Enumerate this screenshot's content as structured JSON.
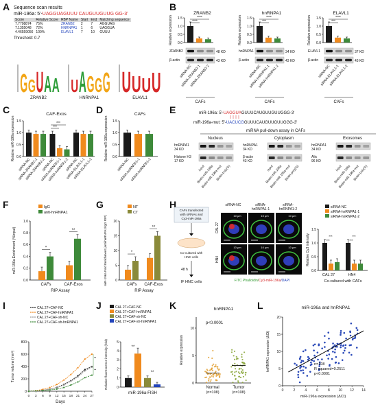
{
  "labels": [
    "A",
    "B",
    "C",
    "D",
    "E",
    "F",
    "G",
    "H",
    "I",
    "J",
    "K",
    "L"
  ],
  "colors": {
    "black": "#1a1a1a",
    "orange": "#f08a1d",
    "green": "#3e8a3a",
    "red": "#d62828",
    "blue": "#2244bb",
    "olive": "#8a8a3a",
    "gray": "#9a9a9a"
  },
  "panelA": {
    "title": "Sequence scan results",
    "seq_prefix": "miR-196a: 5'-",
    "seq_red": "UAGGUAGUUU",
    "seq_mid": " CAUGUUGUUG",
    "seq_suffix": " GG-3'",
    "headers": [
      "Score",
      "Relative Score",
      "RBP Name",
      "Start",
      "End",
      "Matching sequence"
    ],
    "rows": [
      [
        "7.7798874",
        "75%",
        "ZRANB2",
        "2",
        "7",
        "AGGUAG"
      ],
      [
        "7.1355048",
        "72%",
        "HNRNPA1",
        "1",
        "6",
        "UAGGUA"
      ],
      [
        "4.46559056",
        "100%",
        "ELAVL1",
        "7",
        "10",
        "GUUU"
      ]
    ],
    "threshold": "Threshold: 0.7",
    "logos": [
      {
        "name": "ZRANB2",
        "letters": [
          "G",
          "G",
          "U",
          "A",
          "A"
        ]
      },
      {
        "name": "HNRNPA1",
        "letters": [
          "U",
          "A",
          "G",
          "G",
          "G"
        ]
      },
      {
        "name": "ELAVL1",
        "letters": [
          "U",
          "U",
          "U",
          "U"
        ]
      }
    ]
  },
  "panelB": {
    "ylabel": "Relative expression",
    "caption": "CAFs",
    "charts": [
      {
        "protein": "ZRANB2",
        "values": [
          1.0,
          0.25,
          0.2
        ],
        "stars": [
          "****",
          "****"
        ],
        "kda": "48 KD",
        "xt": [
          "siRNA-NC",
          "siRNA-ZRANB2-1",
          "siRNA-ZRANB2-2"
        ]
      },
      {
        "protein": "hnRNPA1",
        "values": [
          1.0,
          0.3,
          0.25
        ],
        "stars": [
          "****",
          "***"
        ],
        "kda": "34 KD",
        "xt": [
          "siRNA-NC",
          "siRNA-hnRNPA1-1",
          "siRNA-hnRNPA1-2"
        ]
      },
      {
        "protein": "ELAVL1",
        "values": [
          1.0,
          0.3,
          0.25
        ],
        "stars": [
          "****",
          "***"
        ],
        "kda": "37 KD",
        "xt": [
          "siRNA-NC",
          "siRNA-ELAVL1-1",
          "siRNA-ELAVL1-2"
        ]
      }
    ],
    "actin": "β-actin",
    "actin_kda": "43 KD",
    "yticks": [
      "0.0",
      "0.5",
      "1.0",
      "1.5"
    ]
  },
  "panelC": {
    "title": "CAF-Exos",
    "ylabel": "Relative miR-196a expression",
    "values": [
      1.0,
      0.95,
      0.95,
      0.95,
      0.35,
      0.3,
      1.0,
      0.95,
      0.95
    ],
    "stars": "***",
    "xt": [
      "siRNA-NC",
      "siRNA-ZRANB2-1",
      "siRNA-ZRANB2-2",
      "siRNA-NC",
      "siRNA-hnRNPA1-1",
      "siRNA-hnRNPA1-2",
      "siRNA-NC",
      "siRNA-ELAVL1-1",
      "siRNA-ELAVL1-2"
    ],
    "yticks": [
      "0.0",
      "0.5",
      "1.0",
      "1.5"
    ]
  },
  "panelD": {
    "title": "CAFs",
    "ylabel": "Relative miR-196a expression",
    "values": [
      1.0,
      0.95,
      0.95
    ],
    "xt": [
      "siRNA-NC",
      "siRNA-hnRNPA1-1",
      "siRNA-hnRNPA1-2"
    ],
    "yticks": [
      "0.0",
      "0.5",
      "1.0",
      "1.5"
    ]
  },
  "panelE": {
    "wt_prefix": "miR-196a: 5'-",
    "wt_red": "UAGGUA",
    "wt_rest": "GUUUCAUGUUGUUGGG-3'",
    "mut_prefix": "miR-196a-mut: 5'-",
    "mut_blue": "UACUCG",
    "mut_rest": "GUUUCAUGUUGUUGGG-3'",
    "assay": "miRNA pull-down assay in CAFs",
    "sections": [
      "Nucleus",
      "Cytoplasm",
      "Exosomes"
    ],
    "blots": [
      [
        "hnRNPA1",
        "34 KD",
        "Histone H3",
        "17 KD"
      ],
      [
        "hnRNPA1",
        "34 KD",
        "β-actin",
        "43 KD"
      ],
      [
        "hnRNPA1",
        "34 KD",
        "Alix",
        "96 KD"
      ]
    ],
    "lanes": [
      "Input",
      "Biotin-miR-196a",
      "Biotin-miR-196a-mut",
      "Biotin-poly(G)"
    ]
  },
  "panelF": {
    "legend": [
      "IgG",
      "anti-hnRNPA1"
    ],
    "ylabel": "miR-196a Enrichment (%Input)",
    "groups": [
      "CAFs",
      "CAF-Exos"
    ],
    "values": [
      [
        0.15,
        0.4
      ],
      [
        0.25,
        0.7
      ]
    ],
    "stars": [
      "*",
      "**"
    ],
    "xlabel": "RIP Assay",
    "yticks": [
      "0.0",
      "0.2",
      "0.4",
      "0.6",
      "0.8",
      "1.0"
    ]
  },
  "panelG": {
    "legend": [
      "NT",
      "CT"
    ],
    "ylabel": "miR-196a Fold Enrichment (anti-hnRNPA1/IgG RIP)",
    "groups": [
      "CAFs",
      "CAF-Exos"
    ],
    "values": [
      [
        3.5,
        6.5
      ],
      [
        7.5,
        15.0
      ]
    ],
    "stars": [
      "*",
      "**"
    ],
    "xlabel": "RIP Assay",
    "yticks": [
      "0",
      "5",
      "10",
      "15",
      "20"
    ]
  },
  "panelH": {
    "flow": [
      "CAFs transfected with siRNAs and Cy3-miR-196a",
      "Co-cultured with HNC cells",
      "48 h",
      "IF HNC cells"
    ],
    "cols": [
      "siRNA-NC",
      "siRNA-hnRNPA1-1",
      "siRNA-hnRNPA1-2"
    ],
    "rows": [
      "CAL 27",
      "HN4"
    ],
    "scale": "10 μm",
    "stain_fitc": "FITC Phalloidin/",
    "stain_cy3": "Cy3-miR-196a",
    "stain_dapi": "/DAPI",
    "legend": [
      "siRNA-NC",
      "siRNA-hnRNPA1-1",
      "siRNA-hnRNPA1-2"
    ],
    "ylabel": "Relative Cy3 intensity",
    "groups": [
      "CAL 27",
      "HN4"
    ],
    "values": [
      [
        1.0,
        0.25,
        0.3
      ],
      [
        1.0,
        0.25,
        0.25
      ]
    ],
    "stars": [
      "***",
      "***",
      "***",
      "***"
    ],
    "caption": "Co-cultured with CAFs",
    "yticks": [
      "0.0",
      "0.5",
      "1.0",
      "1.5"
    ]
  },
  "panelI": {
    "legend": [
      "CAL 27+CAF-NC",
      "CAL 27+CAF-hnRNPA1",
      "CAL 27+CAF-sh-NC",
      "CAL 27+CAF-sh-hnRNPA1"
    ],
    "ylabel": "Tumor volume (mm³)",
    "xlabel": "Days",
    "x": [
      0,
      3,
      6,
      9,
      12,
      15,
      18,
      21,
      24,
      27
    ],
    "series": [
      [
        0,
        5,
        15,
        35,
        60,
        110,
        170,
        250,
        350,
        400
      ],
      [
        0,
        10,
        30,
        60,
        110,
        180,
        270,
        380,
        520,
        600
      ],
      [
        0,
        5,
        15,
        35,
        55,
        100,
        160,
        230,
        330,
        390
      ],
      [
        0,
        5,
        10,
        20,
        35,
        60,
        100,
        150,
        220,
        260
      ]
    ],
    "stars": [
      "***",
      "***"
    ],
    "yticks": [
      "0",
      "200",
      "400",
      "600",
      "800"
    ],
    "xticks": [
      "0",
      "3",
      "6",
      "9",
      "12",
      "15",
      "18",
      "21",
      "24",
      "27"
    ]
  },
  "panelJ": {
    "legend": [
      "CAL 27+CAF-NC",
      "CAL 27+CAF-hnRNPA1",
      "CAL 27+CAF-sh-NC",
      "CAL 27+CAF-sh-hnRNPA1"
    ],
    "ylabel": "Relative fluorescence intensity (fold)",
    "values": [
      1.0,
      3.7,
      1.0,
      0.3
    ],
    "stars": [
      "**",
      "**"
    ],
    "xlabel": "miR-196a-FISH",
    "yticks": [
      "0",
      "1",
      "2",
      "3",
      "4",
      "5"
    ]
  },
  "panelK": {
    "title": "hnRNPA1",
    "pval": "p<0.0001",
    "ylabel": "Relative expression",
    "groups": [
      "Normal",
      "Tumor"
    ],
    "ns": [
      "(n=108)",
      "(n=108)"
    ],
    "yticks": [
      "0",
      "5",
      "10"
    ]
  },
  "panelL": {
    "title": "miR-196a and hnRNPA1",
    "ylabel": "hnRNPA1 expression (ΔCt)",
    "xlabel": "miR-196a expression (ΔCt)",
    "stats": [
      "n=108",
      "R squared=0.2511",
      "p<0.0001"
    ],
    "xticks": [
      "0",
      "2",
      "4",
      "6",
      "8",
      "10",
      "12",
      "14"
    ],
    "yticks": [
      "0",
      "5",
      "10",
      "15",
      "20"
    ]
  }
}
